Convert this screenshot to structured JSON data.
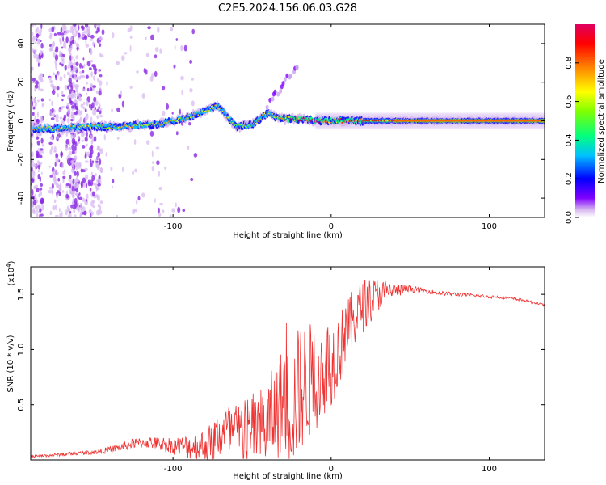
{
  "page_title": "C2E5.2024.156.06.03.G28",
  "chart_data": [
    {
      "type": "heatmap",
      "title": "C2E5.2024.156.06.03.G28",
      "xlabel": "Height of straight line (km)",
      "ylabel": "Frequency (Hz)",
      "xlim": [
        -190,
        135
      ],
      "ylim": [
        -50,
        50
      ],
      "xticks": [
        -100,
        0,
        100
      ],
      "xtick_labels": [
        "-100",
        "0",
        "100"
      ],
      "yticks": [
        -40,
        -20,
        0,
        20,
        40
      ],
      "ytick_labels": [
        "-40",
        "-20",
        "0",
        "20",
        "40"
      ],
      "grid": false,
      "colorbar": {
        "label": "Normalized spectral amplitude",
        "range": [
          0.0,
          1.0
        ],
        "ticks": [
          0.0,
          0.2,
          0.4,
          0.6,
          0.8
        ],
        "tick_labels": [
          "0.0",
          "0.2",
          "0.4",
          "0.6",
          "0.8"
        ],
        "colormap": [
          "#ffffff",
          "#d8b8f0",
          "#8000ff",
          "#0000ff",
          "#00c0ff",
          "#00ff80",
          "#80ff00",
          "#ffff00",
          "#ff8000",
          "#ff0000",
          "#e00060"
        ]
      },
      "ridge": {
        "x": [
          -185,
          -170,
          -150,
          -140,
          -130,
          -120,
          -110,
          -100,
          -90,
          -80,
          -72,
          -60,
          -50,
          -40,
          -35,
          -30,
          -20,
          -10,
          0,
          20,
          40,
          60,
          80,
          100,
          120,
          135
        ],
        "frequency": [
          -4,
          -4,
          -3,
          -3,
          -3,
          -2,
          -2,
          0,
          2,
          5,
          8,
          -3,
          -2,
          4,
          2,
          1,
          1,
          0,
          0,
          0,
          0,
          0,
          0,
          0,
          0,
          0
        ]
      },
      "branch": {
        "x": [
          -40,
          -35,
          -30,
          -25,
          -20
        ],
        "frequency": [
          8,
          14,
          20,
          25,
          28
        ]
      }
    },
    {
      "type": "line",
      "xlabel": "Height of straight line (km)",
      "ylabel": "SNR (10 * v/v)",
      "y_multiplier_label": "(x10",
      "y_multiplier_exp": "4",
      "y_multiplier_close": ")",
      "xlim": [
        -190,
        135
      ],
      "ylim": [
        0,
        17500
      ],
      "xticks": [
        -100,
        0,
        100
      ],
      "xtick_labels": [
        "-100",
        "0",
        "100"
      ],
      "yticks": [
        5000,
        10000,
        15000
      ],
      "ytick_labels": [
        "0.5",
        "1.0",
        "1.5"
      ],
      "color": "#ee3333",
      "series": [
        {
          "x": [
            -190,
            -170,
            -150,
            -140,
            -125,
            -115,
            -105,
            -95,
            -85,
            -75,
            -70,
            -60,
            -50,
            -42,
            -35,
            -30,
            -25,
            -20,
            -15,
            -10,
            -5,
            0,
            5,
            10,
            15,
            20,
            25,
            30,
            35,
            40,
            50,
            60,
            70,
            80,
            90,
            100,
            110,
            120,
            130,
            135
          ],
          "values": [
            300,
            500,
            700,
            900,
            1500,
            1600,
            1400,
            1200,
            1200,
            1500,
            2500,
            2400,
            2500,
            3000,
            4500,
            5500,
            4500,
            6500,
            7000,
            7500,
            8500,
            8800,
            10000,
            11500,
            13000,
            14000,
            14500,
            15000,
            15200,
            15300,
            15500,
            15300,
            15100,
            15000,
            14900,
            14800,
            14700,
            14500,
            14200,
            14000
          ]
        }
      ],
      "noise_envelope": {
        "x": [
          -190,
          -150,
          -130,
          -110,
          -100,
          -80,
          -70,
          -60,
          -50,
          -40,
          -30,
          -20,
          -10,
          0,
          10,
          20,
          30,
          40,
          50,
          60,
          135
        ],
        "amplitude": [
          100,
          200,
          400,
          600,
          800,
          1500,
          2500,
          2800,
          3500,
          4000,
          5000,
          6000,
          5000,
          4000,
          3000,
          2500,
          1500,
          700,
          300,
          200,
          100
        ]
      }
    }
  ]
}
